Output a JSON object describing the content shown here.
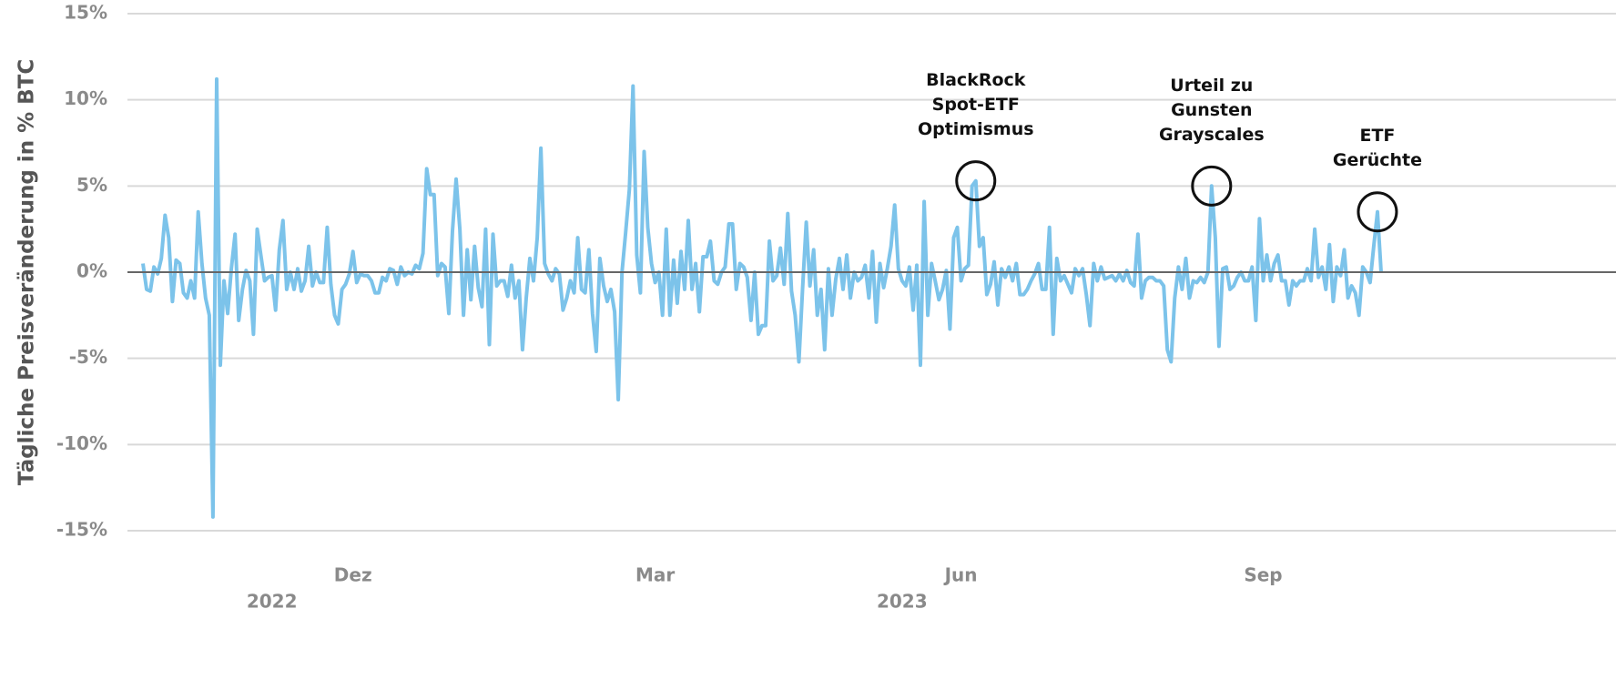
{
  "chart_data": {
    "type": "line",
    "y_label": "Tägliche Preisveränderung in % BTC",
    "color": "#7cc3ea",
    "grid": true,
    "ylim": [
      -15,
      15
    ],
    "yticks": [
      {
        "value": 15,
        "label": "15%"
      },
      {
        "value": 10,
        "label": "10%"
      },
      {
        "value": 5,
        "label": "5%"
      },
      {
        "value": 0,
        "label": "0%"
      },
      {
        "value": -5,
        "label": "-5%"
      },
      {
        "value": -10,
        "label": "-10%"
      },
      {
        "value": -15,
        "label": "-15%"
      }
    ],
    "xlim": [
      0,
      336
    ],
    "xticks": [
      {
        "value": 57,
        "label": "Dez"
      },
      {
        "value": 139,
        "label": "Mar"
      },
      {
        "value": 222,
        "label": "Jun"
      },
      {
        "value": 304,
        "label": "Sep"
      }
    ],
    "year_labels": [
      {
        "value": 35,
        "label": "2022"
      },
      {
        "value": 206,
        "label": "2023"
      }
    ],
    "annotations": [
      {
        "text": [
          "BlackRock",
          "Spot-ETF",
          "Optimismus"
        ],
        "x": 226,
        "y": 5.3
      },
      {
        "text": [
          "Urteil zu",
          "Gunsten",
          "Grayscales"
        ],
        "x": 290,
        "y": 5
      },
      {
        "text": [
          "ETF",
          "Gerüchte"
        ],
        "x": 335,
        "y": 3.5
      }
    ],
    "values": [
      0.5,
      -1,
      -1.1,
      0.3,
      -0.1,
      0.8,
      3.3,
      2,
      -1.7,
      0.7,
      0.5,
      -1.2,
      -1.5,
      -0.5,
      -1.5,
      3.5,
      0.5,
      -1.5,
      -2.5,
      -14.2,
      11.2,
      -5.4,
      -0.5,
      -2.4,
      0.2,
      2.2,
      -2.8,
      -1,
      0.1,
      -0.5,
      -3.6,
      2.5,
      1,
      -0.5,
      -0.3,
      -0.2,
      -2.2,
      1.3,
      3,
      -1,
      0,
      -1,
      0.2,
      -1.1,
      -0.5,
      1.5,
      -0.8,
      0,
      -0.6,
      -0.6,
      2.6,
      -0.7,
      -2.5,
      -3,
      -1,
      -0.7,
      -0.1,
      1.2,
      -0.6,
      -0.1,
      -0.2,
      -0.2,
      -0.5,
      -1.2,
      -1.2,
      -0.3,
      -0.5,
      0.2,
      0.1,
      -0.7,
      0.3,
      -0.2,
      0,
      -0.1,
      0.4,
      0.2,
      1.1,
      6,
      4.5,
      4.5,
      -0.2,
      0.5,
      0.3,
      -2.4,
      2.4,
      5.4,
      2.5,
      -2.5,
      1.3,
      -1.6,
      1.5,
      -0.9,
      -2,
      2.5,
      -4.2,
      2.2,
      -0.8,
      -0.5,
      -0.5,
      -1.4,
      0.4,
      -1.5,
      -0.5,
      -4.5,
      -1.5,
      0.8,
      -0.5,
      2,
      7.2,
      0.5,
      -0.1,
      -0.5,
      0.2,
      -0.1,
      -2.2,
      -1.5,
      -0.5,
      -1.2,
      2,
      -1,
      -1.2,
      1.3,
      -2.4,
      -4.6,
      0.8,
      -0.8,
      -1.7,
      -1,
      -2.3,
      -7.4,
      0,
      2.3,
      4.8,
      10.8,
      1,
      -1.2,
      7,
      2.6,
      0.5,
      -0.6,
      0,
      -2.5,
      2.5,
      -2.5,
      0.7,
      -1.8,
      1.2,
      -1,
      3,
      -1,
      0.5,
      -2.3,
      0.9,
      0.9,
      1.8,
      -0.5,
      -0.7,
      0,
      0.3,
      2.8,
      2.8,
      -1,
      0.5,
      0.3,
      -0.3,
      -2.8,
      0,
      -3.6,
      -3.1,
      -3.1,
      1.8,
      -0.5,
      -0.2,
      1.4,
      -0.7,
      3.4,
      -1.1,
      -2.5,
      -5.2,
      -1,
      2.9,
      -0.8,
      1.3,
      -2.5,
      -1,
      -4.5,
      0.2,
      -2.5,
      -0.4,
      0.8,
      -1,
      1,
      -1.5,
      0,
      -0.5,
      -0.3,
      0.4,
      -1.5,
      1.2,
      -2.9,
      0.5,
      -0.9,
      0.2,
      1.5,
      3.9,
      0.2,
      -0.5,
      -0.8,
      0.3,
      -2.2,
      0.4,
      -5.4,
      4.1,
      -2.5,
      0.5,
      -0.5,
      -1.6,
      -1,
      0.1,
      -3.3,
      2,
      2.6,
      -0.5,
      0.2,
      0.4,
      5,
      5.3,
      1.5,
      2,
      -1.3,
      -0.7,
      0.6,
      -1.9,
      0.2,
      -0.3,
      0.3,
      -0.5,
      0.5,
      -1.3,
      -1.3,
      -1,
      -0.5,
      -0.1,
      0.5,
      -1,
      -1,
      2.6,
      -3.6,
      0.8,
      -0.5,
      -0.2,
      -0.7,
      -1.2,
      0.2,
      -0.2,
      0.2,
      -1.3,
      -3.1,
      0.5,
      -0.5,
      0.3,
      -0.4,
      -0.3,
      -0.2,
      -0.5,
      -0.1,
      -0.5,
      0.1,
      -0.6,
      -0.8,
      2.2,
      -1.5,
      -0.5,
      -0.3,
      -0.3,
      -0.5,
      -0.5,
      -0.8,
      -4.5,
      -5.2,
      -1.5,
      0.3,
      -1,
      0.8,
      -1.5,
      -0.5,
      -0.6,
      -0.3,
      -0.6,
      0,
      5,
      2,
      -4.3,
      0.2,
      0.3,
      -1,
      -0.8,
      -0.3,
      0,
      -0.5,
      -0.5,
      0.3,
      -2.8,
      3.1,
      -0.5,
      1,
      -0.5,
      0.5,
      1,
      -0.5,
      -0.5,
      -1.9,
      -0.5,
      -0.8,
      -0.5,
      -0.5,
      0.2,
      -0.5,
      2.5,
      -0.3,
      0.3,
      -1,
      1.6,
      -1.7,
      0.3,
      -0.2,
      1.3,
      -1.5,
      -0.8,
      -1.2,
      -2.5,
      0.3,
      0,
      -0.6,
      1.5,
      3.5,
      0
    ]
  }
}
